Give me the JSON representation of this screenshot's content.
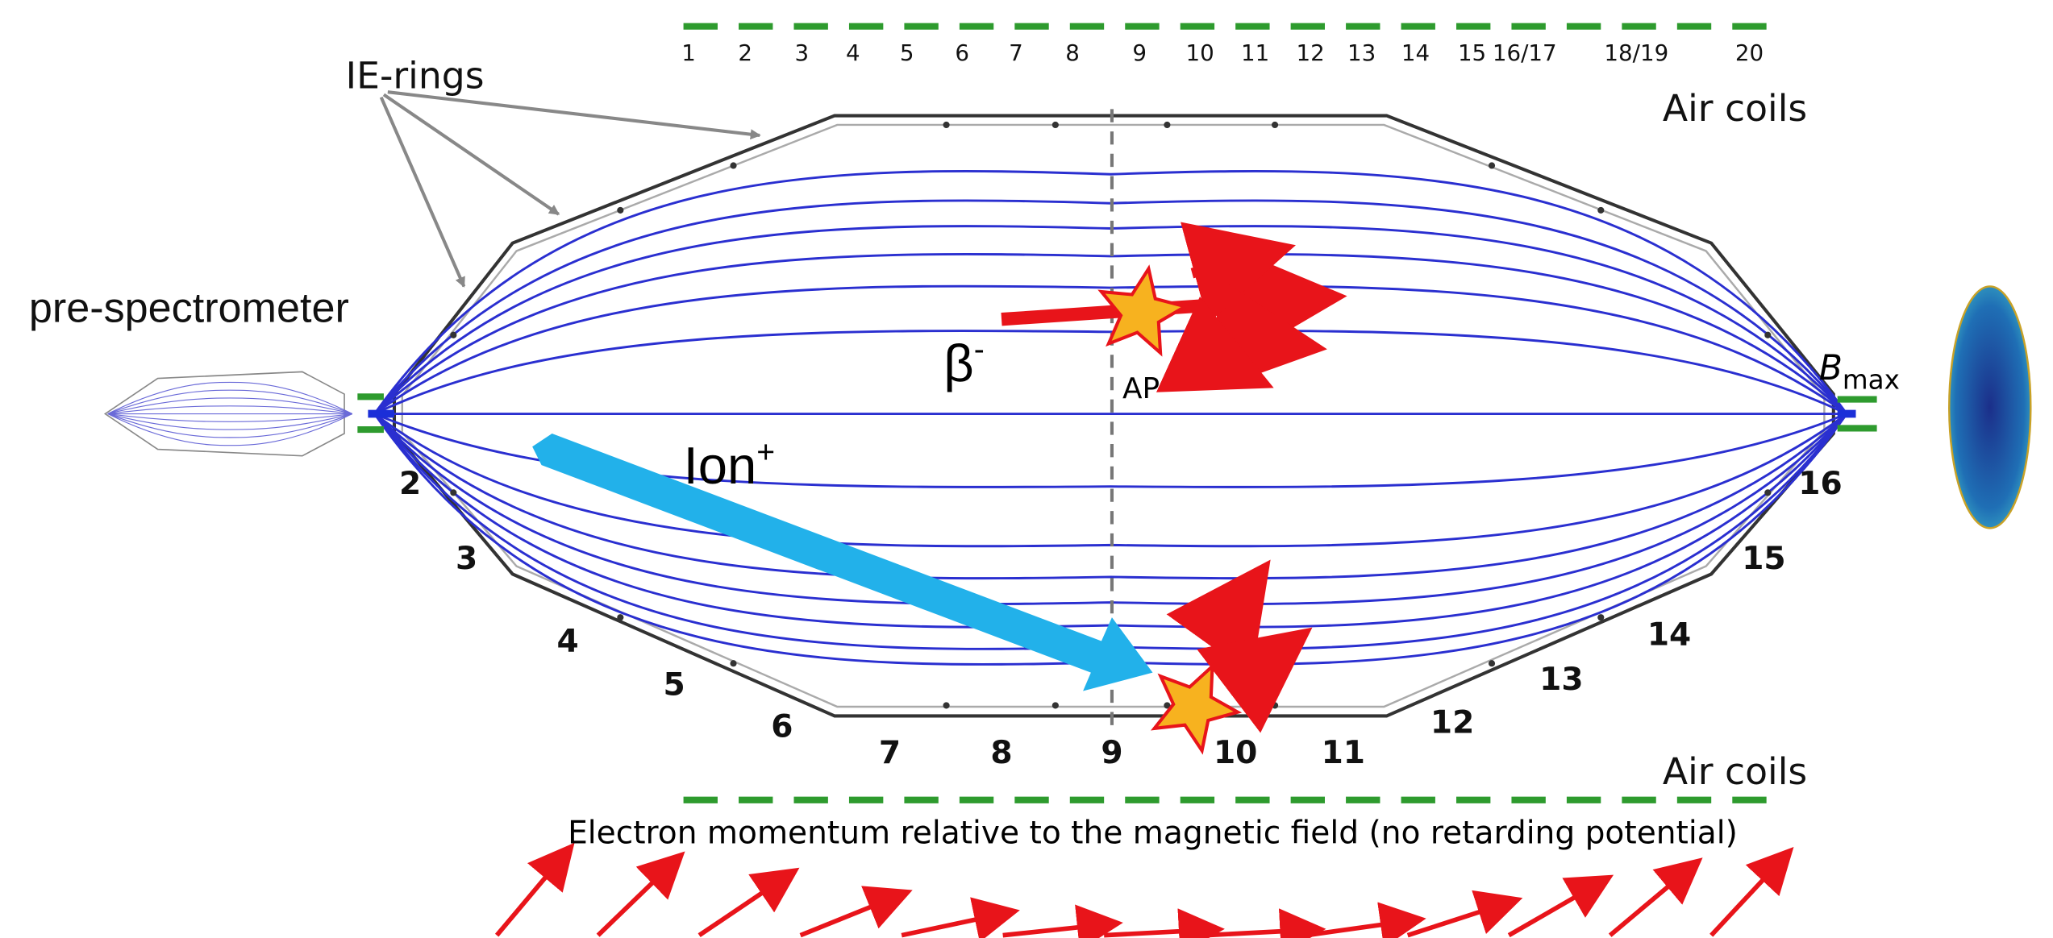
{
  "labels": {
    "ie_rings": "IE-rings",
    "pre_spectrometer": "pre-spectrometer",
    "air_coils_top": "Air coils",
    "air_coils_bottom": "Air coils",
    "beta": {
      "base": "β",
      "sup": "-"
    },
    "ap": "AP",
    "ion": {
      "base": "Ion",
      "sup": "+"
    },
    "b_max": {
      "base": "B",
      "sub": "max"
    },
    "caption": "Electron momentum relative to the magnetic field (no retarding potential)"
  },
  "air_coil_numbers": [
    "1",
    "2",
    "3",
    "4",
    "5",
    "6",
    "7",
    "8",
    "9",
    "10",
    "11",
    "12",
    "13",
    "14",
    "15",
    "16/17",
    "18/19",
    "20"
  ],
  "ring_numbers": [
    "2",
    "3",
    "4",
    "5",
    "6",
    "7",
    "8",
    "9",
    "10",
    "11",
    "12",
    "13",
    "14",
    "15",
    "16"
  ]
}
